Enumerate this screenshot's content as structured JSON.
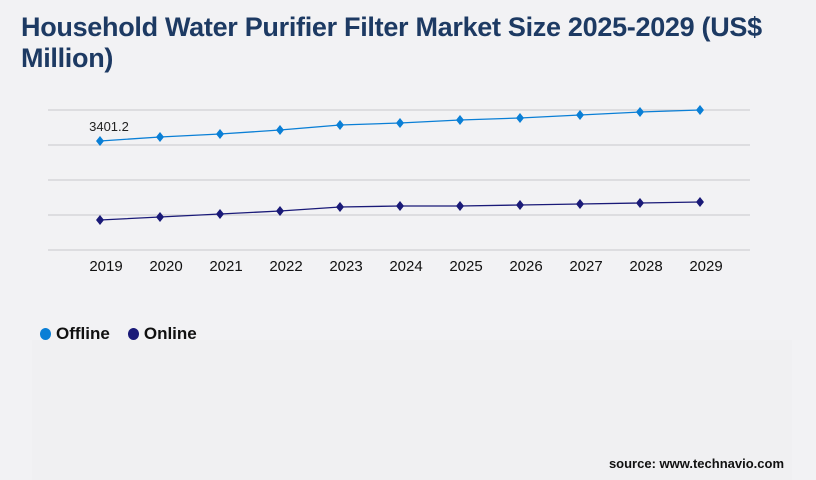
{
  "title": "Household Water Purifier Filter Market Size 2025-2029 (US$ Million)",
  "source": "source: www.technavio.com",
  "colors": {
    "offline": "#0a7fd6",
    "online": "#1a1a78",
    "title": "#1d3a63",
    "grid": "#c8c8cc"
  },
  "chart_data": {
    "type": "line",
    "title": "Household Water Purifier Filter Market Size 2025-2029 (US$ Million)",
    "x": [
      "2019",
      "2020",
      "2021",
      "2022",
      "2023",
      "2024",
      "2025",
      "2026",
      "2027",
      "2028",
      "2029"
    ],
    "series": [
      {
        "name": "Offline",
        "values": [
          3401.2,
          3526,
          3619,
          3744,
          3900,
          3962,
          4056,
          4118,
          4212,
          4305,
          4368
        ]
      },
      {
        "name": "Online",
        "values": [
          936,
          1030,
          1123,
          1217,
          1342,
          1373,
          1373,
          1404,
          1435,
          1466,
          1498
        ]
      }
    ],
    "data_labels": [
      {
        "series": "Offline",
        "x": "2019",
        "text": "3401.2"
      }
    ],
    "ylim": [
      0,
      4368
    ],
    "grid": true,
    "legend": "bottom-left",
    "xlabel": "",
    "ylabel": ""
  }
}
